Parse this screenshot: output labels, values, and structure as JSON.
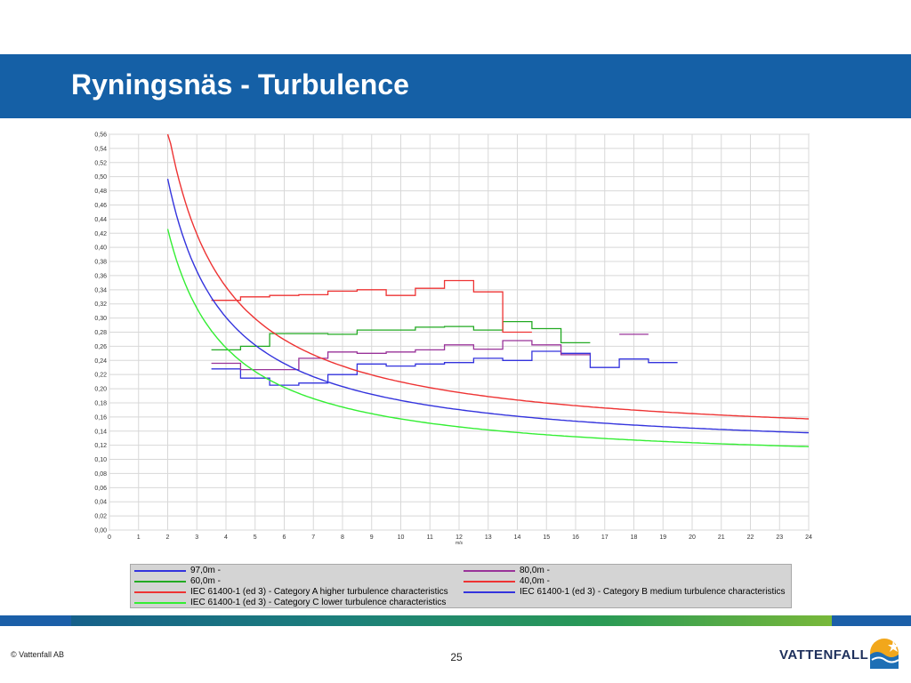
{
  "slide": {
    "title": "Ryningsnäs - Turbulence",
    "copyright": "© Vattenfall AB",
    "page_number": "25",
    "logo_text": "VATTENFALL"
  },
  "colors": {
    "title_bar": "#1560a6",
    "red": "#ee3333",
    "blue": "#3333dd",
    "green": "#22aa22",
    "purple": "#993399",
    "light_green": "#33ee33"
  },
  "chart_data": {
    "type": "line",
    "x_unit_label": "m/s",
    "xlim": [
      0,
      24
    ],
    "ylim": [
      0,
      0.56
    ],
    "grid": true,
    "legend_position": "bottom",
    "x_ticks": [
      "0",
      "1",
      "2",
      "3",
      "4",
      "5",
      "6",
      "7",
      "8",
      "9",
      "10",
      "11",
      "12",
      "13",
      "14",
      "15",
      "16",
      "17",
      "18",
      "19",
      "20",
      "21",
      "22",
      "23",
      "24"
    ],
    "y_ticks": [
      "0,00",
      "0,02",
      "0,04",
      "0,06",
      "0,08",
      "0,10",
      "0,12",
      "0,14",
      "0,16",
      "0,18",
      "0,20",
      "0,22",
      "0,24",
      "0,26",
      "0,28",
      "0,30",
      "0,32",
      "0,34",
      "0,36",
      "0,38",
      "0,40",
      "0,42",
      "0,44",
      "0,46",
      "0,48",
      "0,50",
      "0,52",
      "0,54",
      "0,56"
    ],
    "series": [
      {
        "name": "97,0m -",
        "color": "#3333dd",
        "style": "step",
        "points": [
          [
            3.5,
            0.228
          ],
          [
            4.5,
            0.215
          ],
          [
            5.5,
            0.205
          ],
          [
            6.5,
            0.208
          ],
          [
            7.5,
            0.22
          ],
          [
            8.5,
            0.235
          ],
          [
            9.5,
            0.232
          ],
          [
            10.5,
            0.235
          ],
          [
            11.5,
            0.237
          ],
          [
            12.5,
            0.243
          ],
          [
            13.5,
            0.24
          ],
          [
            14.5,
            0.253
          ],
          [
            15.5,
            0.25
          ],
          [
            16.5,
            0.23
          ],
          [
            17.5,
            0.242
          ],
          [
            18.5,
            0.237
          ],
          [
            19.5,
            0.237
          ]
        ]
      },
      {
        "name": "80,0m -",
        "color": "#993399",
        "style": "step",
        "points": [
          [
            3.5,
            0.236
          ],
          [
            4.5,
            0.227
          ],
          [
            5.5,
            0.227
          ],
          [
            6.5,
            0.243
          ],
          [
            7.5,
            0.252
          ],
          [
            8.5,
            0.25
          ],
          [
            9.5,
            0.252
          ],
          [
            10.5,
            0.255
          ],
          [
            11.5,
            0.262
          ],
          [
            12.5,
            0.256
          ],
          [
            13.5,
            0.268
          ],
          [
            14.5,
            0.262
          ],
          [
            15.5,
            0.248
          ],
          [
            16.5,
            0.248
          ]
        ],
        "extra_segments": [
          [
            17.5,
            18.5,
            0.277
          ]
        ]
      },
      {
        "name": "60,0m -",
        "color": "#22aa22",
        "style": "step",
        "points": [
          [
            3.5,
            0.255
          ],
          [
            4.5,
            0.26
          ],
          [
            5.5,
            0.278
          ],
          [
            6.5,
            0.278
          ],
          [
            7.5,
            0.277
          ],
          [
            8.5,
            0.283
          ],
          [
            9.5,
            0.283
          ],
          [
            10.5,
            0.287
          ],
          [
            11.5,
            0.288
          ],
          [
            12.5,
            0.283
          ],
          [
            13.5,
            0.295
          ],
          [
            14.5,
            0.285
          ],
          [
            15.5,
            0.265
          ],
          [
            16.5,
            0.265
          ]
        ]
      },
      {
        "name": "40,0m -",
        "color": "#ee3333",
        "style": "step",
        "points": [
          [
            3.5,
            0.325
          ],
          [
            4.5,
            0.33
          ],
          [
            5.5,
            0.332
          ],
          [
            6.5,
            0.333
          ],
          [
            7.5,
            0.338
          ],
          [
            8.5,
            0.34
          ],
          [
            9.5,
            0.332
          ],
          [
            10.5,
            0.342
          ],
          [
            11.5,
            0.353
          ],
          [
            12.5,
            0.337
          ],
          [
            13.5,
            0.28
          ],
          [
            14.5,
            0.28
          ]
        ]
      },
      {
        "name": "IEC 61400-1 (ed 3) - Category A higher turbulence characteristics",
        "color": "#ee3333",
        "style": "curve",
        "i_ref": 0.16
      },
      {
        "name": "IEC 61400-1 (ed 3) - Category B medium turbulence characteristics",
        "color": "#3333dd",
        "style": "curve",
        "i_ref": 0.14
      },
      {
        "name": "IEC 61400-1 (ed 3) - Category C lower turbulence characteristics",
        "color": "#33ee33",
        "style": "curve",
        "i_ref": 0.12
      }
    ]
  }
}
